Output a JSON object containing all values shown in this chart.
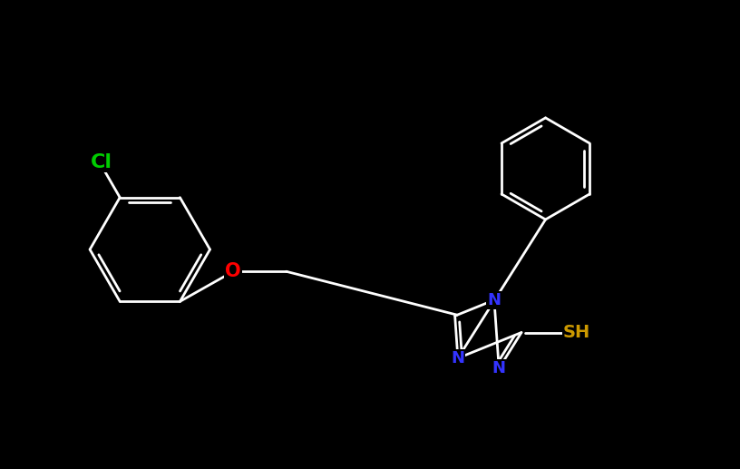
{
  "background_color": "#000000",
  "bond_color": "#ffffff",
  "atom_colors": {
    "Cl": "#00cc00",
    "O": "#ff0000",
    "N": "#3333ff",
    "S": "#cc9900",
    "C": "#ffffff"
  },
  "figsize": [
    8.16,
    5.17
  ],
  "dpi": 100,
  "bond_lw": 2.0,
  "hex_r": 1.3,
  "pent_r": 0.78,
  "ph_r": 1.1
}
